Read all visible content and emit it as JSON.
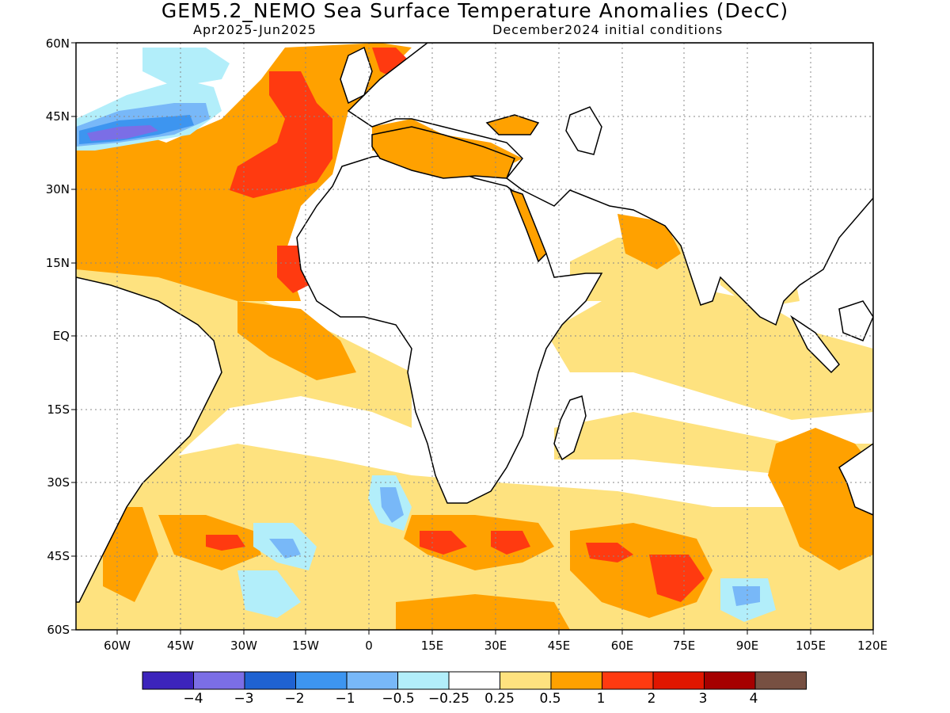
{
  "title": "GEM5.2_NEMO Sea Surface Temperature Anomalies (DecC)",
  "period": "Apr2025-Jun2025",
  "initial_conditions": "December2024 initial conditions",
  "y_ticks": [
    "60N",
    "45N",
    "30N",
    "15N",
    "EQ",
    "15S",
    "30S",
    "45S",
    "60S"
  ],
  "x_ticks": [
    "60W",
    "45W",
    "30W",
    "15W",
    "0",
    "15E",
    "30E",
    "45E",
    "60E",
    "75E",
    "90E",
    "105E",
    "120E"
  ],
  "colorbar": {
    "colors": [
      "#3c24bc",
      "#7b6ee6",
      "#1f62d2",
      "#3d95f0",
      "#78b8f8",
      "#b2eefa",
      "#ffffff",
      "#fee27f",
      "#ffa100",
      "#ff3a10",
      "#e01600",
      "#a50000",
      "#775042"
    ],
    "labels": [
      "−4",
      "−3",
      "−2",
      "−1",
      "−0.5",
      "−0.25",
      "0.25",
      "0.5",
      "1",
      "2",
      "3",
      "4"
    ]
  }
}
